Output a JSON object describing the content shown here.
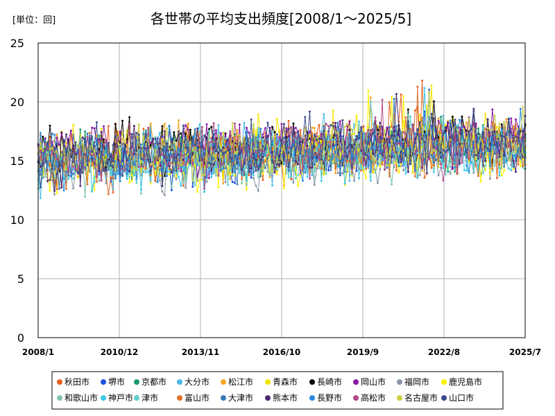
{
  "chart_data": {
    "type": "line",
    "title": "各世帯の平均支出頻度[2008/1～2025/5]",
    "unit_label": "[単位：回]",
    "x_ticks": [
      "2008/1",
      "2010/12",
      "2013/11",
      "2016/10",
      "2019/9",
      "2022/8",
      "2025/7"
    ],
    "y_ticks": [
      "0",
      "5",
      "10",
      "15",
      "20",
      "25"
    ],
    "ylim": [
      0,
      25
    ],
    "grid": true,
    "legend_position": "bottom",
    "series_count_estimate": 20,
    "series": [
      {
        "name": "秋田市",
        "color": "#e8601c"
      },
      {
        "name": "堺市",
        "color": "#1f4fe0"
      },
      {
        "name": "京都市",
        "color": "#1a9a6a"
      },
      {
        "name": "大分市",
        "color": "#4ab8e8"
      },
      {
        "name": "松江市",
        "color": "#f5a623"
      },
      {
        "name": "青森市",
        "color": "#f5e400"
      },
      {
        "name": "長崎市",
        "color": "#000000"
      },
      {
        "name": "岡山市",
        "color": "#8a1aa6"
      },
      {
        "name": "福岡市",
        "color": "#8a95a5"
      },
      {
        "name": "鹿児島市",
        "color": "#fff200"
      },
      {
        "name": "和歌山市",
        "color": "#7fc4b0"
      },
      {
        "name": "神戸市",
        "color": "#3cc8e8"
      },
      {
        "name": "津市",
        "color": "#5fd0d0"
      },
      {
        "name": "富山市",
        "color": "#e0702a"
      },
      {
        "name": "大津市",
        "color": "#3a78b8"
      },
      {
        "name": "熊本市",
        "color": "#4a2a70"
      },
      {
        "name": "長野市",
        "color": "#2a8ae0"
      },
      {
        "name": "高松市",
        "color": "#b04a8a"
      },
      {
        "name": "名古屋市",
        "color": "#c8d040"
      },
      {
        "name": "山口市",
        "color": "#3a4a8a"
      }
    ]
  }
}
